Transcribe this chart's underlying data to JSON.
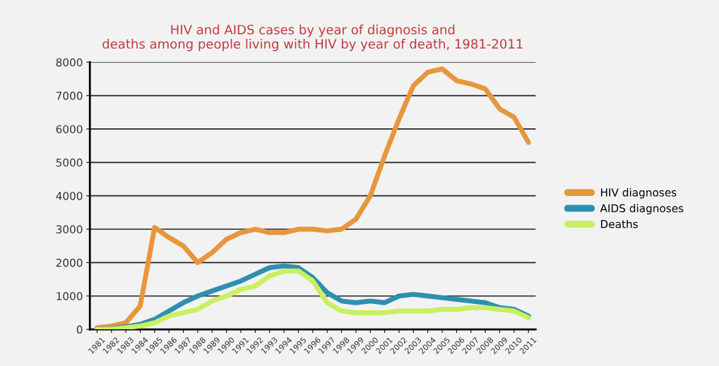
{
  "chart_data": {
    "type": "line",
    "title": "HIV and AIDS cases by year of diagnosis and\ndeaths among people living with HIV by year of death, 1981-2011",
    "categories": [
      "1981",
      "1982",
      "1983",
      "1984",
      "1985",
      "1986",
      "1987",
      "1988",
      "1989",
      "1990",
      "1991",
      "1992",
      "1993",
      "1994",
      "1995",
      "1996",
      "1997",
      "1998",
      "1999",
      "2000",
      "2001",
      "2002",
      "2003",
      "2004",
      "2005",
      "2006",
      "2007",
      "2008",
      "2009",
      "2010",
      "2011"
    ],
    "series": [
      {
        "name": "HIV diagnoses",
        "color": "#e8963c",
        "values": [
          50,
          100,
          200,
          700,
          3050,
          2750,
          2500,
          2000,
          2300,
          2700,
          2900,
          3000,
          2900,
          2900,
          3000,
          3000,
          2950,
          3000,
          3300,
          4000,
          5200,
          6300,
          7300,
          7700,
          7800,
          7450,
          7350,
          7200,
          6600,
          6350,
          5600
        ]
      },
      {
        "name": "AIDS diagnoses",
        "color": "#2e8fb0",
        "values": [
          0,
          20,
          80,
          150,
          300,
          550,
          800,
          1000,
          1150,
          1300,
          1450,
          1650,
          1850,
          1900,
          1850,
          1550,
          1100,
          850,
          800,
          850,
          800,
          1000,
          1050,
          1000,
          950,
          900,
          850,
          800,
          650,
          600,
          400
        ]
      },
      {
        "name": "Deaths",
        "color": "#c8f060",
        "values": [
          0,
          10,
          50,
          100,
          200,
          400,
          500,
          600,
          850,
          1000,
          1200,
          1300,
          1600,
          1750,
          1750,
          1450,
          800,
          550,
          500,
          500,
          500,
          550,
          550,
          550,
          600,
          600,
          650,
          650,
          600,
          550,
          350
        ]
      }
    ],
    "ylim": [
      0,
      8000
    ],
    "yticks": [
      0,
      1000,
      2000,
      3000,
      4000,
      5000,
      6000,
      7000,
      8000
    ],
    "grid": "y",
    "legend": "right",
    "marker": "none",
    "line_style": "solid"
  }
}
